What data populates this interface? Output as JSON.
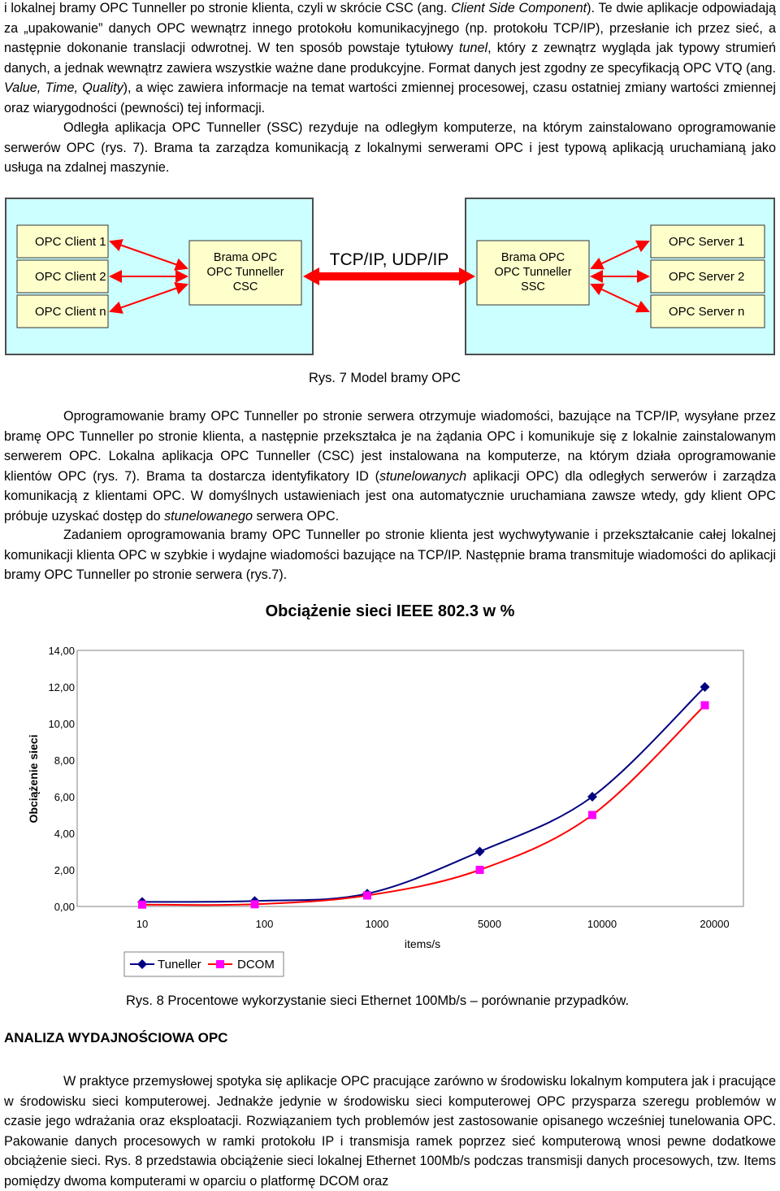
{
  "para1": {
    "a": "i lokalnej bramy OPC Tunneller po stronie klienta, czyli w skrócie CSC (ang. ",
    "a_em": "Client Side Component",
    "b": "). Te dwie aplikacje odpowiadają za „upakowanie” danych OPC wewnątrz innego protokołu komunikacyjnego (np. protokołu TCP/IP), przesłanie ich przez sieć, a następnie dokonanie translacji odwrotnej. W ten sposób powstaje tytułowy ",
    "b_em": "tunel",
    "c": ", który z zewnątrz wygląda jak typowy strumień danych, a jednak wewnątrz zawiera wszystkie ważne dane produkcyjne. Format danych jest zgodny ze specyfikacją OPC VTQ (ang. ",
    "c_em": "Value, Time, Quality",
    "d": "), a więc zawiera informacje na temat wartości zmiennej procesowej, czasu ostatniej zmiany wartości zmiennej oraz wiarygodności (pewności) tej informacji."
  },
  "para2": "Odległa aplikacja OPC Tunneller (SSC) rezyduje na odległym komputerze, na którym zainstalowano oprogramowanie serwerów OPC (rys. 7). Brama ta zarządza komunikacją z lokalnymi serwerami OPC i jest typową aplikacją uruchamianą jako usługa na zdalnej maszynie.",
  "diagram": {
    "clients": [
      "OPC Client 1",
      "OPC Client 2",
      "OPC Client n"
    ],
    "servers": [
      "OPC Server 1",
      "OPC Server 2",
      "OPC Server n"
    ],
    "csc": [
      "Brama OPC",
      "OPC Tunneller",
      "CSC"
    ],
    "ssc": [
      "Brama OPC",
      "OPC Tunneller",
      "SSC"
    ],
    "link_label": "TCP/IP, UDP/IP",
    "colors": {
      "panel": "#ccffff",
      "box": "#ffffcc",
      "arrow": "#ff0000"
    }
  },
  "fig7_caption": "Rys. 7  Model bramy OPC",
  "para3": {
    "a": "Oprogramowanie bramy OPC Tunneller po stronie serwera otrzymuje wiadomości, bazujące na TCP/IP, wysyłane przez bramę OPC Tunneller po stronie klienta, a następnie przekształca je na żądania OPC i komunikuje się z lokalnie zainstalowanym serwerem OPC. Lokalna aplikacja OPC Tunneller (CSC) jest instalowana na komputerze, na którym działa oprogramowanie klientów OPC (rys. 7). Brama ta dostarcza identyfikatory ID (",
    "a_em": "stunelowanych",
    "b": " aplikacji OPC) dla odległych serwerów i zarządza komunikacją z klientami OPC. W domyślnych ustawieniach jest ona automatycznie uruchamiana zawsze wtedy, gdy klient OPC próbuje uzyskać dostęp do ",
    "b_em": "stunelowanego",
    "c": " serwera OPC."
  },
  "para4": "Zadaniem oprogramowania bramy OPC Tunneller po stronie klienta jest wychwytywanie i przekształcanie całej lokalnej komunikacji klienta OPC w szybkie i wydajne wiadomości bazujące na TCP/IP. Następnie brama transmituje wiadomości do aplikacji bramy OPC Tunneller po stronie serwera (rys.7).",
  "chart_data": {
    "type": "line",
    "title": "Obciążenie sieci IEEE 802.3 w %",
    "xlabel": "items/s",
    "ylabel": "Obciążenie sieci",
    "categories": [
      "10",
      "100",
      "1000",
      "5000",
      "10000",
      "20000"
    ],
    "ylim": [
      0,
      14
    ],
    "yticks": [
      "0,00",
      "2,00",
      "4,00",
      "6,00",
      "8,00",
      "10,00",
      "12,00",
      "14,00"
    ],
    "series": [
      {
        "name": "Tuneller",
        "values": [
          0.25,
          0.3,
          0.7,
          3.0,
          6.0,
          12.0
        ],
        "color": "#000080",
        "marker": "diamond"
      },
      {
        "name": "DCOM",
        "values": [
          0.1,
          0.12,
          0.6,
          2.0,
          5.0,
          11.0
        ],
        "color": "#ff0000",
        "marker_color": "#ff00ff",
        "marker": "square"
      }
    ],
    "legend": "bottom-left",
    "grid": false
  },
  "fig8_caption": "Rys. 8  Procentowe wykorzystanie sieci Ethernet 100Mb/s – porównanie przypadków.",
  "section_heading": "ANALIZA WYDAJNOŚCIOWA OPC",
  "para5": "W praktyce przemysłowej spotyka się aplikacje OPC pracujące zarówno w środowisku lokalnym komputera jak i pracujące w środowisku sieci komputerowej. Jednakże jedynie w środowisku sieci komputerowej OPC przysparza szeregu problemów w czasie jego wdrażania oraz eksploatacji. Rozwiązaniem tych problemów jest zastosowanie opisanego wcześniej tunelowania OPC. Pakowanie danych procesowych w ramki protokołu IP i transmisja ramek poprzez sieć komputerową wnosi pewne dodatkowe obciążenie sieci. Rys. 8 przedstawia obciążenie sieci lokalnej Ethernet 100Mb/s podczas transmisji danych procesowych, tzw. Items pomiędzy dwoma komputerami w oparciu o platformę DCOM oraz"
}
